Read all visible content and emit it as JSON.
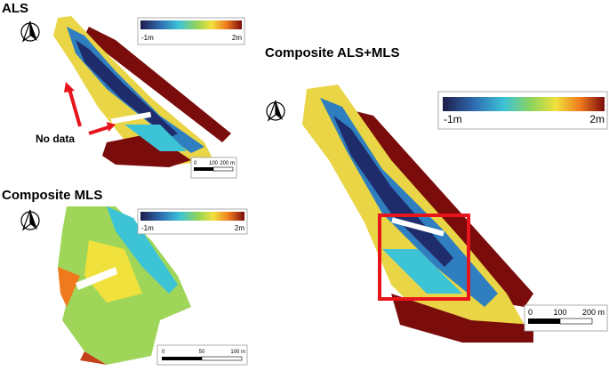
{
  "panels": [
    {
      "title": "ALS",
      "legend": {
        "min": "-1m",
        "max": "2m"
      },
      "scale_bar": [
        "0",
        "100",
        "200 m"
      ],
      "annotation": "No data"
    },
    {
      "title": "Composite MLS",
      "legend": {
        "min": "-1m",
        "max": "2m"
      },
      "scale_bar": [
        "0",
        "50",
        "100 m"
      ]
    },
    {
      "title": "Composite ALS+MLS",
      "legend": {
        "min": "-1m",
        "max": "2m"
      },
      "scale_bar": [
        "0",
        "100",
        "200 m"
      ]
    }
  ]
}
